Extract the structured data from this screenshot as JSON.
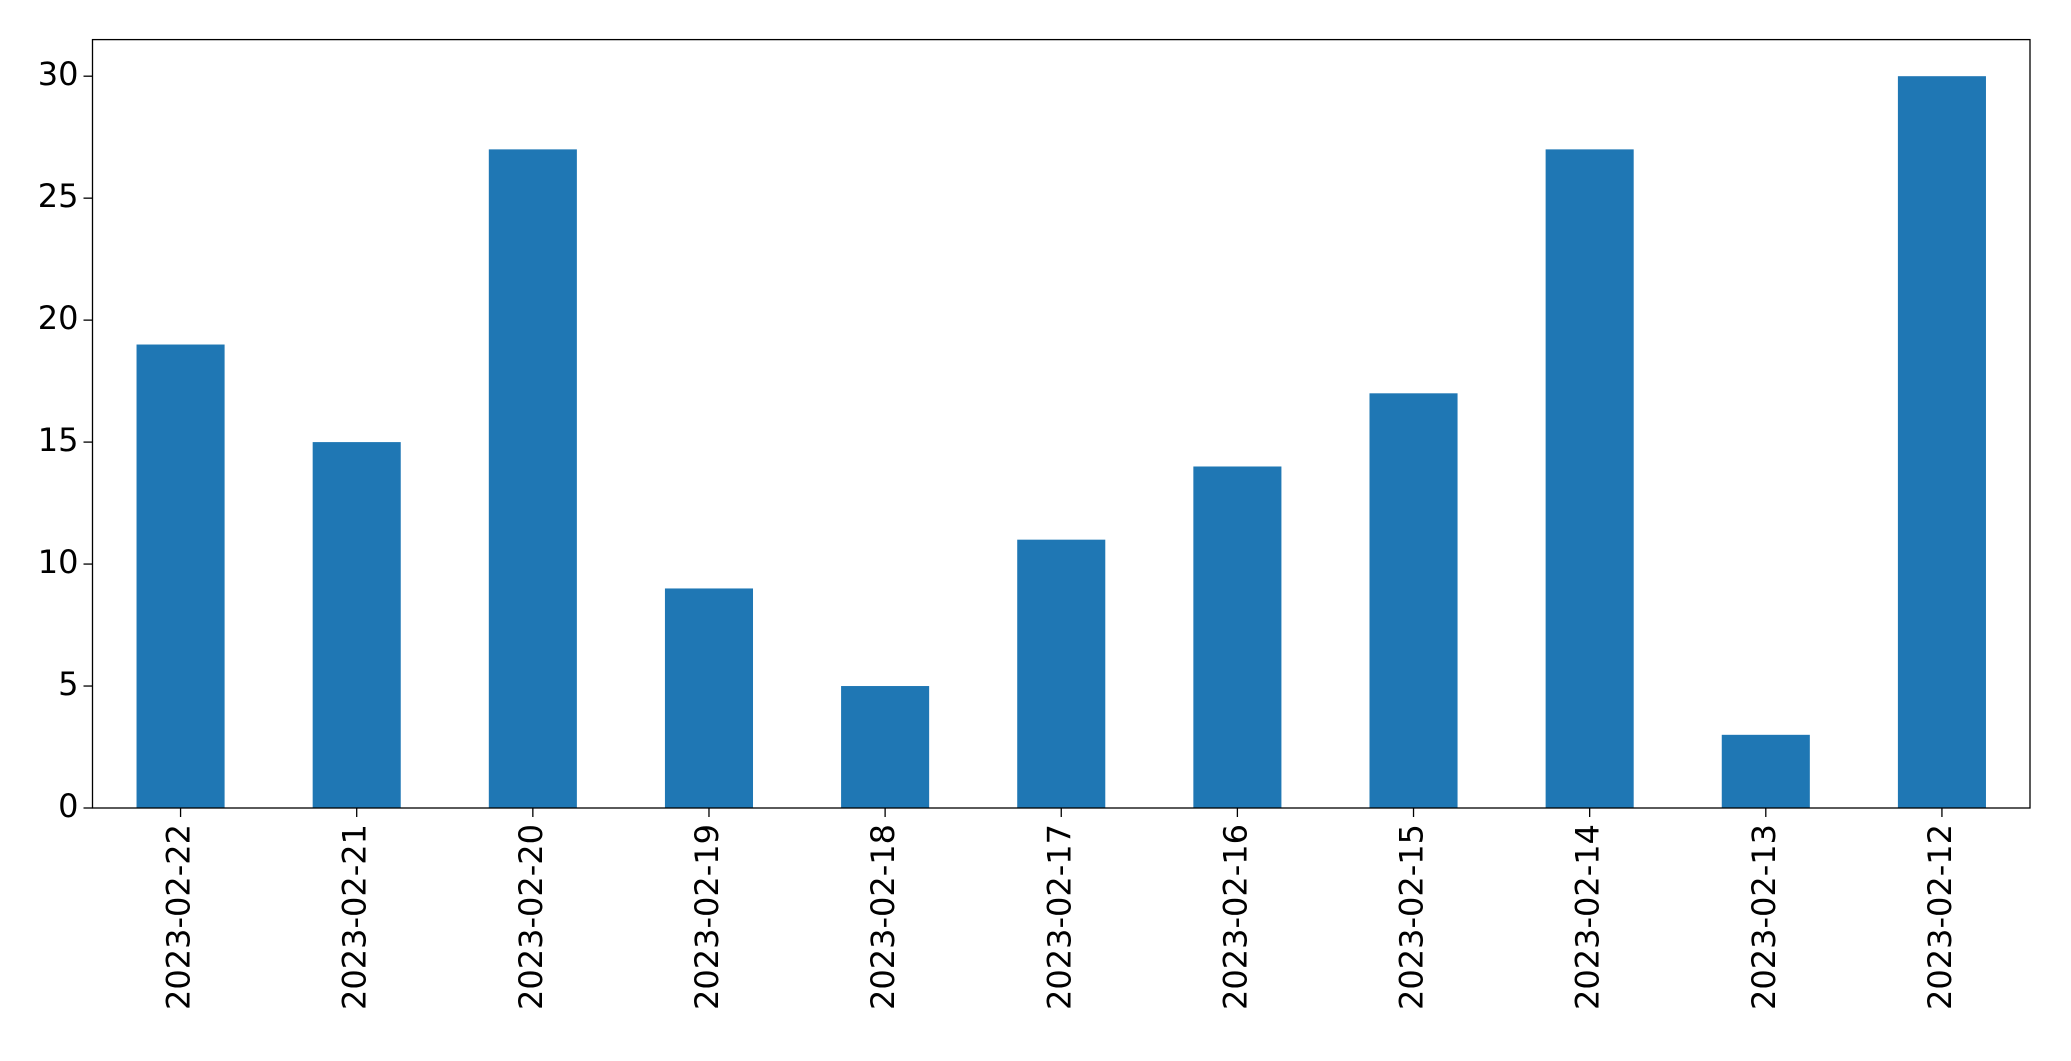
{
  "chart_data": {
    "type": "bar",
    "categories": [
      "2023-02-22",
      "2023-02-21",
      "2023-02-20",
      "2023-02-19",
      "2023-02-18",
      "2023-02-17",
      "2023-02-16",
      "2023-02-15",
      "2023-02-14",
      "2023-02-13",
      "2023-02-12"
    ],
    "values": [
      19,
      15,
      27,
      9,
      5,
      11,
      14,
      17,
      27,
      3,
      30
    ],
    "color": "#1f77b4",
    "ylim": [
      0,
      31.5
    ],
    "yticks": [
      0,
      5,
      10,
      15,
      20,
      25,
      30
    ],
    "grid": false
  }
}
